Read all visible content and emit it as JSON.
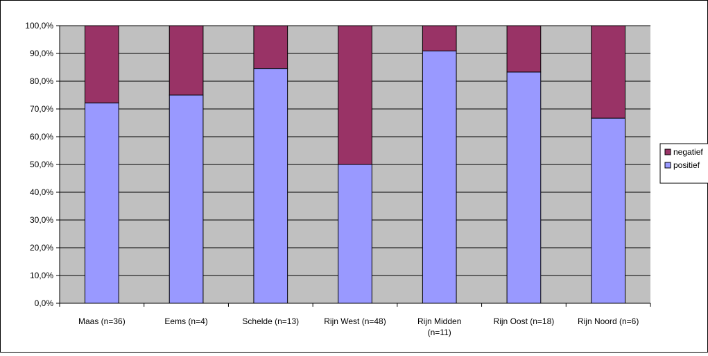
{
  "chart_data": {
    "type": "bar",
    "stacked": true,
    "categories": [
      [
        "Maas (n=36)"
      ],
      [
        "Eems (n=4)"
      ],
      [
        "Schelde (n=13)"
      ],
      [
        "Rijn West (n=48)"
      ],
      [
        "Rijn Midden",
        "(n=11)"
      ],
      [
        "Rijn Oost (n=18)"
      ],
      [
        "Rijn Noord (n=6)"
      ]
    ],
    "series": [
      {
        "name": "positief",
        "color": "#9999ff",
        "values": [
          72.2,
          75.0,
          84.6,
          50.0,
          90.9,
          83.3,
          66.7
        ]
      },
      {
        "name": "negatief",
        "color": "#993366",
        "values": [
          27.8,
          25.0,
          15.4,
          50.0,
          9.1,
          16.7,
          33.3
        ]
      }
    ],
    "legend": [
      {
        "name": "negatief",
        "color": "#993366"
      },
      {
        "name": "positief",
        "color": "#9999ff"
      }
    ],
    "title": "",
    "xlabel": "",
    "ylabel": "",
    "ylim": [
      0,
      100
    ],
    "yticks": [
      "0,0%",
      "10,0%",
      "20,0%",
      "30,0%",
      "40,0%",
      "50,0%",
      "60,0%",
      "70,0%",
      "80,0%",
      "90,0%",
      "100,0%"
    ],
    "grid": true,
    "plot_background": "#c0c0c0",
    "legend_position": "right"
  }
}
